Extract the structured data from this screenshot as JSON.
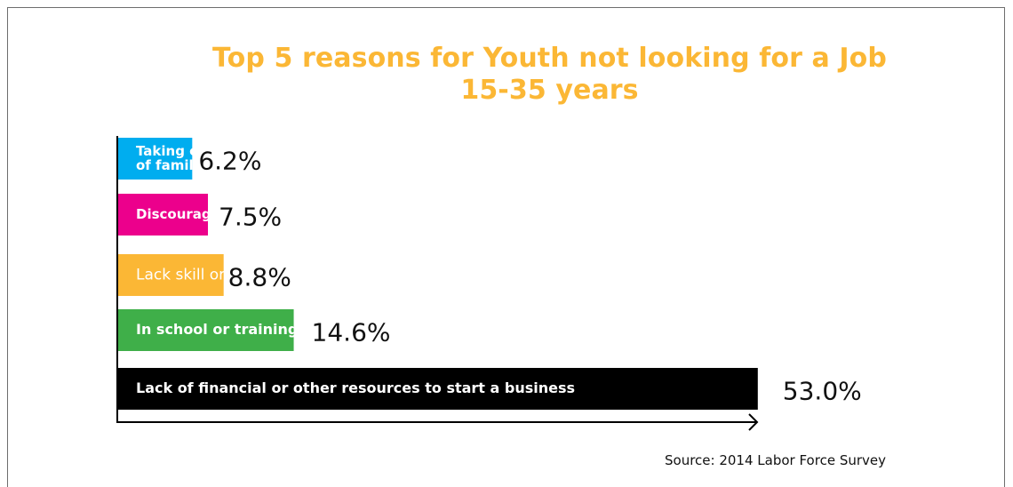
{
  "chart_data": {
    "type": "bar",
    "orientation": "horizontal",
    "title": "Top 5 reasons for Youth not looking for a Job",
    "subtitle": "15-35 years",
    "xlabel": "",
    "ylabel": "",
    "unit": "%",
    "xlim": [
      0,
      60
    ],
    "grid": false,
    "categories": [
      [
        "Taking care",
        "of family"
      ],
      [
        "Discouraged"
      ],
      [
        "Lack skill or experience"
      ],
      [
        "In school or training"
      ],
      [
        "Lack of financial or other resources to start a business"
      ]
    ],
    "values": [
      6.2,
      7.5,
      8.8,
      14.6,
      53.0
    ],
    "value_labels": [
      "6.2%",
      "7.5%",
      "8.8%",
      "14.6%",
      "53.0%"
    ],
    "colors": [
      "#00adef",
      "#ec008c",
      "#fbb735",
      "#3faf49",
      "#000000"
    ],
    "label_colors": [
      "#ffffff",
      "#ffffff",
      "#ffffff",
      "#ffffff",
      "#ffffff"
    ],
    "label_bold": [
      true,
      true,
      false,
      true,
      true
    ]
  },
  "source": "Source: 2014 Labor Force Survey"
}
